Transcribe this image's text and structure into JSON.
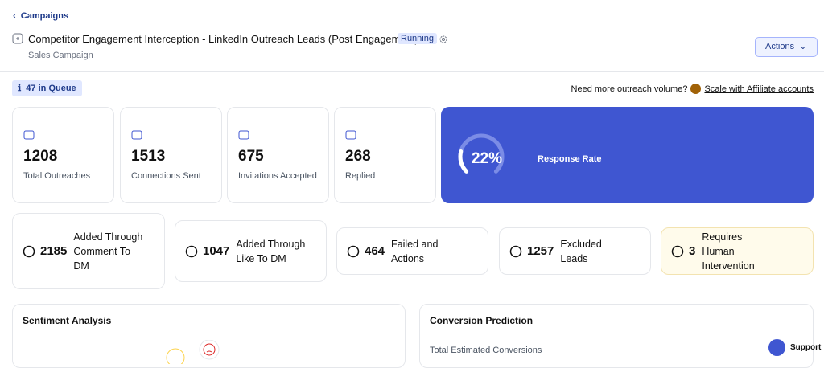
{
  "nav": {
    "back": "Campaigns"
  },
  "header": {
    "title": "Competitor Engagement Interception - LinkedIn Outreach Leads (Post Engagement)",
    "status": "Running",
    "subtitle": "Sales Campaign",
    "actions": "Actions"
  },
  "queue": {
    "count": 47,
    "label": "in Queue"
  },
  "promo": {
    "text": "Need more outreach volume?",
    "link": "Scale with Affiliate accounts"
  },
  "stats": [
    {
      "value": 1208,
      "label": "Total Outreaches"
    },
    {
      "value": 1513,
      "label": "Connections Sent"
    },
    {
      "value": 675,
      "label": "Invitations Accepted"
    },
    {
      "value": 268,
      "label": "Replied"
    }
  ],
  "response_rate": {
    "value": 22,
    "value_label": "22%",
    "label": "Response Rate"
  },
  "lead_stats": [
    {
      "value": 2185,
      "label": "Added Through Comment To DM"
    },
    {
      "value": 1047,
      "label": "Added Through Like To DM"
    },
    {
      "value": 464,
      "label": "Failed and Actions"
    },
    {
      "value": 1257,
      "label": "Excluded Leads"
    },
    {
      "value": 3,
      "label": "Requires Human Intervention"
    }
  ],
  "panels": {
    "sentiment": "Sentiment Analysis",
    "conversion": "Conversion Prediction",
    "conversion_subtitle": "Total Estimated Conversions"
  },
  "support": "Support"
}
